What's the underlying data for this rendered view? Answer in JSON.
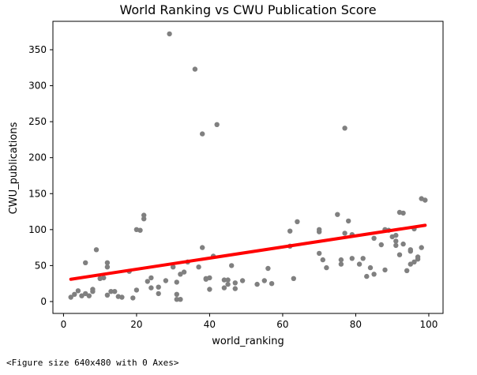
{
  "figure_caption": "<Figure size 640x480 with 0 Axes>",
  "chart_data": {
    "type": "scatter",
    "title": "World Ranking vs CWU Publication Score",
    "xlabel": "world_ranking",
    "ylabel": "CWU_publications",
    "xlim": [
      -2.9,
      103.9
    ],
    "ylim": [
      -16.5,
      389.5
    ],
    "xticks": [
      0,
      20,
      40,
      60,
      80,
      100
    ],
    "yticks": [
      0,
      50,
      100,
      150,
      200,
      250,
      300,
      350
    ],
    "grid": false,
    "point_color": "#808080",
    "line_color": "#ff0000",
    "scatter": {
      "x": [
        2,
        3,
        4,
        5,
        6,
        6,
        7,
        8,
        8,
        9,
        10,
        11,
        12,
        12,
        12,
        13,
        14,
        15,
        16,
        18,
        19,
        20,
        20,
        21,
        22,
        22,
        23,
        24,
        24,
        26,
        26,
        28,
        29,
        30,
        31,
        31,
        31,
        32,
        32,
        33,
        34,
        36,
        37,
        38,
        38,
        39,
        39,
        40,
        40,
        41,
        42,
        44,
        44,
        45,
        45,
        46,
        47,
        47,
        49,
        53,
        55,
        56,
        57,
        62,
        62,
        63,
        64,
        70,
        70,
        70,
        71,
        72,
        75,
        76,
        76,
        77,
        77,
        78,
        79,
        79,
        81,
        82,
        83,
        84,
        85,
        85,
        87,
        88,
        88,
        89,
        90,
        91,
        91,
        91,
        92,
        92,
        93,
        93,
        94,
        95,
        95,
        95,
        96,
        96,
        97,
        97,
        98,
        98,
        99
      ],
      "y": [
        6,
        10,
        15,
        8,
        11,
        54,
        8,
        17,
        14,
        72,
        32,
        33,
        48,
        54,
        9,
        14,
        14,
        7,
        6,
        42,
        5,
        16,
        100,
        99,
        115,
        120,
        28,
        33,
        19,
        11,
        20,
        29,
        372,
        48,
        10,
        3,
        27,
        3,
        38,
        41,
        55,
        323,
        48,
        75,
        233,
        31,
        32,
        17,
        33,
        63,
        246,
        30,
        19,
        24,
        30,
        50,
        18,
        26,
        29,
        24,
        29,
        46,
        25,
        98,
        77,
        32,
        111,
        67,
        97,
        100,
        58,
        47,
        121,
        52,
        58,
        241,
        95,
        112,
        93,
        60,
        52,
        60,
        35,
        47,
        38,
        88,
        79,
        44,
        100,
        99,
        90,
        78,
        84,
        92,
        65,
        124,
        80,
        123,
        43,
        52,
        72,
        70,
        55,
        101,
        62,
        59,
        143,
        75,
        141
      ],
      "name": ""
    },
    "regression": {
      "x": [
        2,
        99
      ],
      "y": [
        31,
        106
      ]
    }
  }
}
